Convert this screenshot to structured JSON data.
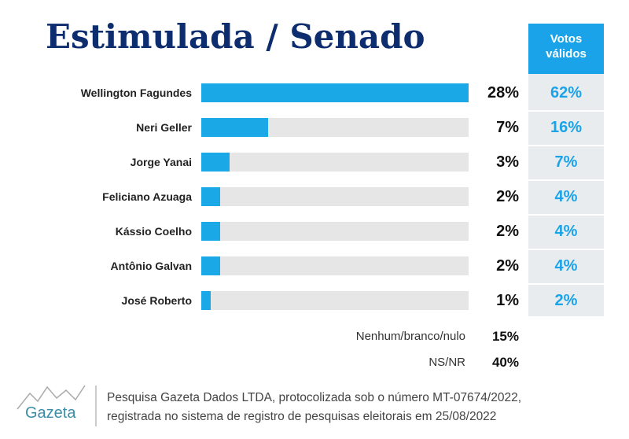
{
  "chart_data": {
    "type": "bar",
    "title": "Estimulada / Senado",
    "categories": [
      "Wellington Fagundes",
      "Neri Geller",
      "Jorge Yanai",
      "Feliciano Azuaga",
      "Kássio Coelho",
      "Antônio Galvan",
      "José Roberto"
    ],
    "values": [
      28,
      7,
      3,
      2,
      2,
      2,
      1
    ],
    "value_labels": [
      "28%",
      "7%",
      "3%",
      "2%",
      "2%",
      "2%",
      "1%"
    ],
    "color": "#1aa8e6",
    "xlim": [
      0,
      28
    ],
    "valid_votes": {
      "label": "Votos válidos",
      "color": "#1aa3e8",
      "values": [
        62,
        16,
        7,
        4,
        4,
        4,
        2
      ],
      "value_labels": [
        "62%",
        "16%",
        "7%",
        "4%",
        "4%",
        "4%",
        "2%"
      ]
    },
    "other_rows": [
      {
        "label": "Nenhum/branco/nulo",
        "value": 15,
        "value_label": "15%"
      },
      {
        "label": "NS/NR",
        "value": 40,
        "value_label": "40%"
      }
    ],
    "source": [
      "Pesquisa Gazeta Dados LTDA, protocolizada sob o número MT-07674/2022,",
      "registrada no sistema de registro de pesquisas eleitorais em 25/08/2022"
    ],
    "logo": "Gazeta"
  }
}
